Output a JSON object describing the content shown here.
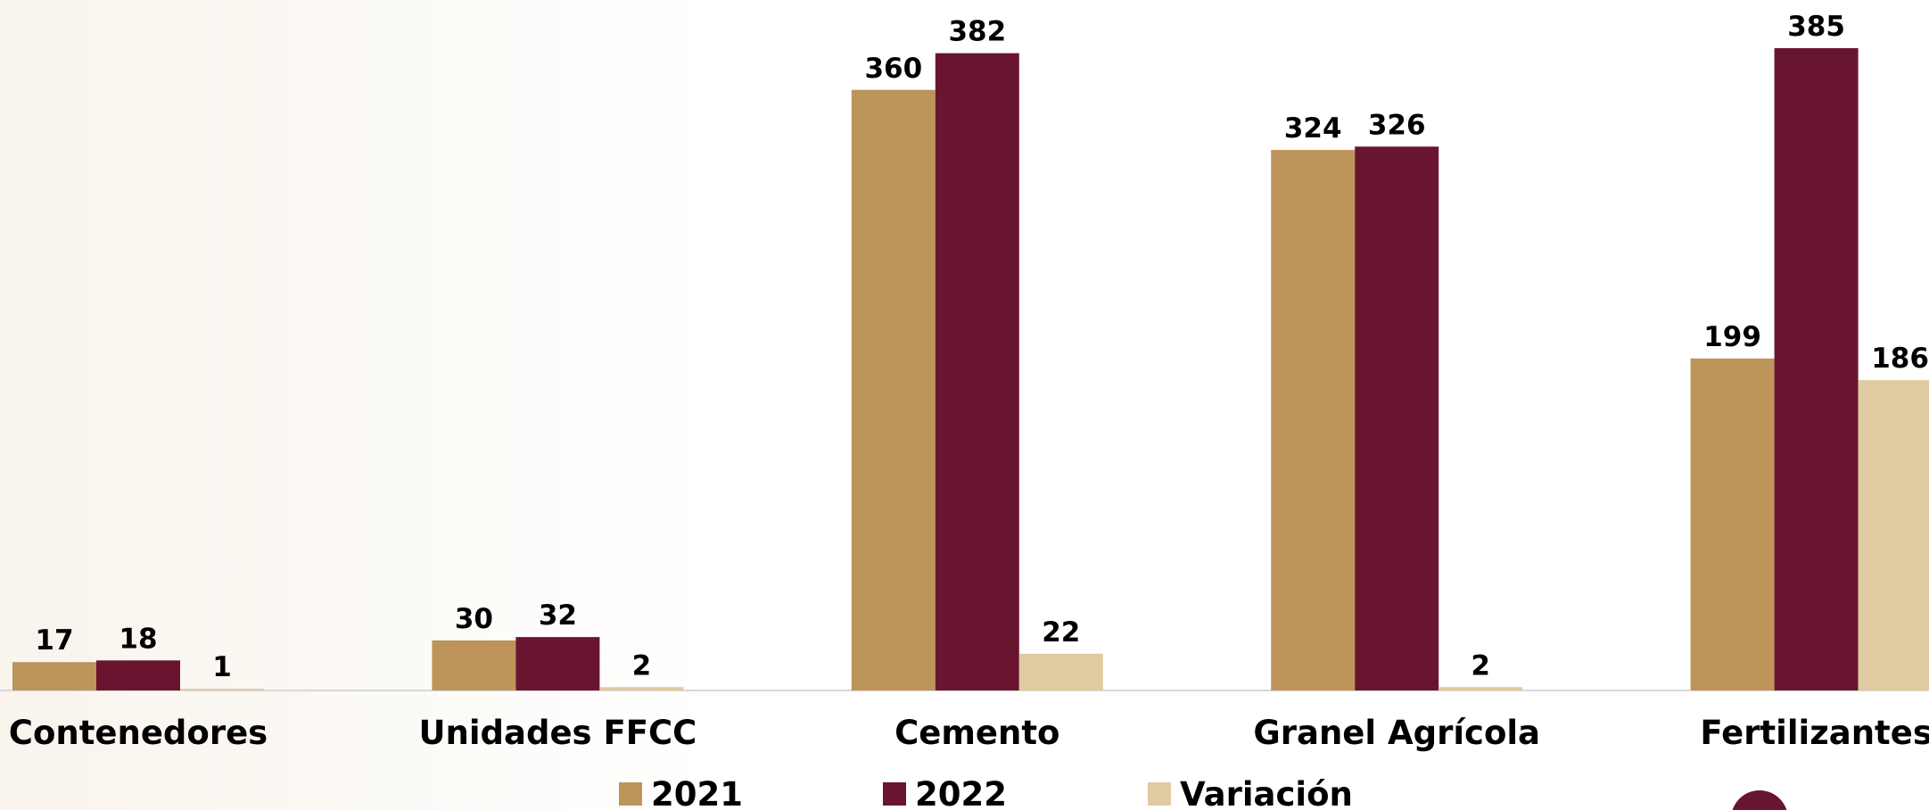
{
  "chart_data": {
    "type": "bar",
    "categories": [
      "Contenedores",
      "Unidades FFCC",
      "Cemento",
      "Granel Agrícola",
      "Fertilizantes"
    ],
    "series": [
      {
        "name": "2021",
        "color": "#bd945a",
        "values": [
          17,
          30,
          360,
          324,
          199
        ]
      },
      {
        "name": "2022",
        "color": "#6a1530",
        "values": [
          18,
          32,
          382,
          326,
          385
        ]
      },
      {
        "name": "Variación",
        "color": "#e0caa0",
        "values": [
          1,
          2,
          22,
          2,
          186
        ]
      }
    ],
    "legend": "bottom"
  }
}
